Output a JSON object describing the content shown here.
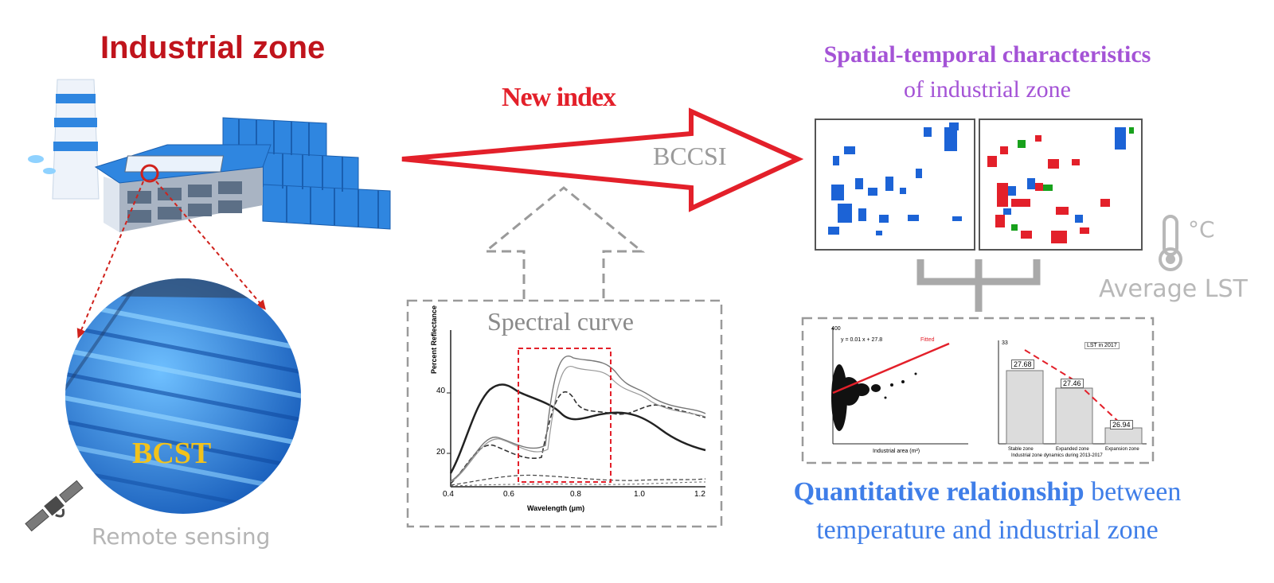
{
  "title_industrial": "Industrial zone",
  "new_index_label": "New index",
  "index_name": "BCCSI",
  "spatial_line1": "Spatial-temporal characteristics",
  "spatial_line2": "of industrial zone",
  "spectral_label": "Spectral curve",
  "bcst_label": "BCST",
  "remote_sensing_label": "Remote sensing",
  "celsius_label": "°C",
  "avg_lst_label": "Average LST",
  "quant_bold": "Quantitative relationship",
  "quant_rest": " between",
  "quant_line2": "temperature and industrial zone",
  "spectral_chart": {
    "ylabel": "Percent Reflectance",
    "xlabel": "Wavelength (μm)",
    "x_ticks": [
      "0.4",
      "0.6",
      "0.8",
      "1.0",
      "1.2"
    ],
    "y_ticks": [
      "20",
      "40"
    ]
  },
  "scatter_chart": {
    "xlabel": "Industrial area (m²)",
    "legend": "Fitted",
    "equation": "y = 0.01 x + 27.8",
    "y_tick_top": "400"
  },
  "bar_chart": {
    "xlabel": "Industrial zone dynamics during 2013-2017",
    "legend": "LST in 2017",
    "y_tick_top": "33",
    "categories": [
      "Stable zone",
      "Expanded zone",
      "Expansion zone"
    ],
    "values": [
      27.68,
      27.46,
      26.94
    ],
    "value_labels": [
      "27.68",
      "27.46",
      "26.94"
    ]
  },
  "colors": {
    "red": "#e3202a",
    "purple": "#a453d6",
    "blue": "#3f7ee8",
    "gray": "#9a9a9a",
    "building_blue": "#2f86e0"
  }
}
